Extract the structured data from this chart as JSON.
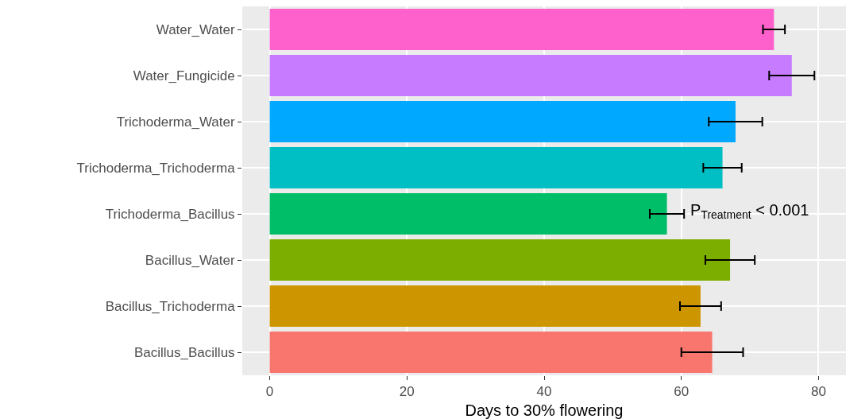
{
  "chart_data": {
    "type": "bar",
    "orientation": "horizontal",
    "xlabel": "Days to 30% flowering",
    "categories": [
      "Water_Water",
      "Water_Fungicide",
      "Trichoderma_Water",
      "Trichoderma_Trichoderma",
      "Trichoderma_Bacillus",
      "Bacillus_Water",
      "Bacillus_Trichoderma",
      "Bacillus_Bacillus"
    ],
    "values": [
      73.5,
      76.1,
      67.9,
      66.0,
      57.9,
      67.1,
      62.8,
      64.5
    ],
    "errors": [
      1.6,
      3.3,
      3.9,
      2.8,
      2.5,
      3.6,
      3.0,
      4.5
    ],
    "colors": [
      "#ff61cc",
      "#c77cff",
      "#00a9ff",
      "#00bfc4",
      "#00be67",
      "#7cae00",
      "#cd9600",
      "#f8766d"
    ],
    "xlim": [
      -4,
      84
    ],
    "xticks": [
      0,
      20,
      40,
      60,
      80
    ],
    "grid": true,
    "annotations": [
      "P$_{Treatment}$ < 0.001"
    ]
  }
}
